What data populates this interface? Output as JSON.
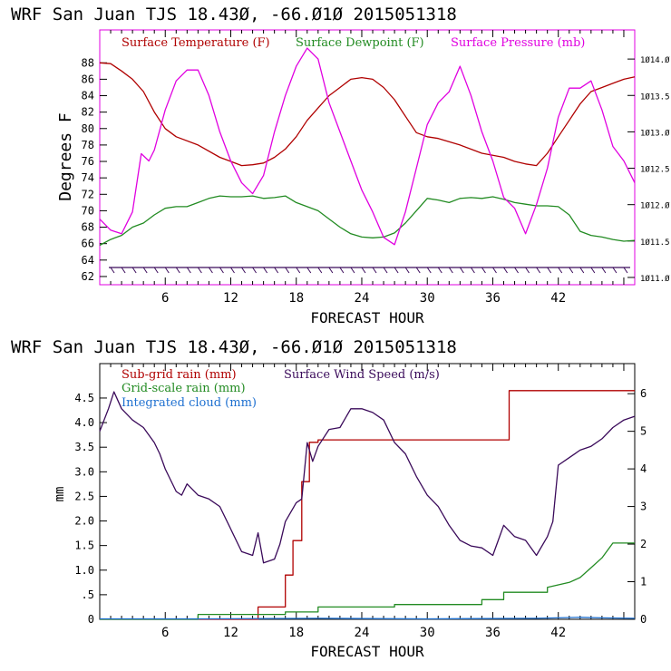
{
  "charts": [
    {
      "title": "WRF  San Juan TJS  18.43Ø, -66.Ø1Ø  2015051318",
      "xlabel": "FORECAST HOUR",
      "ylabel": "Degrees F",
      "legend": [
        {
          "label": "Surface Temperature (F)",
          "color": "#b00000"
        },
        {
          "label": "Surface Dewpoint (F)",
          "color": "#228b22"
        },
        {
          "label": "Surface Pressure (mb)",
          "color": "#e000e0"
        }
      ],
      "xticks": [
        "6",
        "12",
        "18",
        "24",
        "30",
        "36",
        "42"
      ],
      "yticks_left": [
        "62",
        "64",
        "66",
        "68",
        "70",
        "72",
        "74",
        "76",
        "78",
        "80",
        "82",
        "84",
        "86",
        "88"
      ],
      "yticks_right": [
        "1Ø11.Ø",
        "1Ø11.5",
        "1Ø12.Ø",
        "1Ø12.5",
        "1Ø13.Ø",
        "1Ø13.5",
        "1Ø14.Ø"
      ]
    },
    {
      "title": "WRF  San Juan TJS  18.43Ø, -66.Ø1Ø  2015051318",
      "xlabel": "FORECAST HOUR",
      "ylabel": "mm",
      "legend": [
        {
          "label": "Sub-grid rain (mm)",
          "color": "#b00000"
        },
        {
          "label": "Surface Wind Speed (m/s)",
          "color": "#3a0a5a"
        },
        {
          "label": "Grid-scale rain (mm)",
          "color": "#228b22"
        },
        {
          "label": "Integrated cloud (mm)",
          "color": "#1e70d0"
        }
      ],
      "xticks": [
        "6",
        "12",
        "18",
        "24",
        "30",
        "36",
        "42"
      ],
      "yticks_left": [
        "0",
        ".5",
        "1.0",
        "1.5",
        "2.0",
        "2.5",
        "3.0",
        "3.5",
        "4.0",
        "4.5"
      ],
      "yticks_right": [
        "0",
        "1",
        "2",
        "3",
        "4",
        "5",
        "6"
      ]
    }
  ],
  "chart_data": [
    {
      "type": "line",
      "x_range": [
        0,
        49
      ],
      "ylim": [
        61,
        92
      ],
      "y2lim": [
        1010.9,
        1014.4
      ],
      "series": [
        {
          "name": "Surface Temperature (F)",
          "axis": "left",
          "color": "#b00000",
          "points": [
            [
              0,
              88
            ],
            [
              1,
              87.9
            ],
            [
              2,
              87
            ],
            [
              3,
              86
            ],
            [
              4,
              84.5
            ],
            [
              5,
              82
            ],
            [
              6,
              80
            ],
            [
              7,
              79
            ],
            [
              9,
              78
            ],
            [
              11,
              76.5
            ],
            [
              12,
              76
            ],
            [
              13,
              75.5
            ],
            [
              14,
              75.6
            ],
            [
              15,
              75.8
            ],
            [
              16,
              76.5
            ],
            [
              17,
              77.5
            ],
            [
              18,
              79
            ],
            [
              19,
              81
            ],
            [
              20,
              82.5
            ],
            [
              21,
              84
            ],
            [
              22,
              85
            ],
            [
              23,
              86
            ],
            [
              24,
              86.2
            ],
            [
              25,
              86
            ],
            [
              26,
              85
            ],
            [
              27,
              83.5
            ],
            [
              28,
              81.5
            ],
            [
              29,
              79.5
            ],
            [
              30,
              79
            ],
            [
              31,
              78.8
            ],
            [
              33,
              78
            ],
            [
              35,
              77
            ],
            [
              37,
              76.5
            ],
            [
              38,
              76
            ],
            [
              39,
              75.7
            ],
            [
              40,
              75.5
            ],
            [
              41,
              77
            ],
            [
              42,
              79
            ],
            [
              43,
              81
            ],
            [
              44,
              83
            ],
            [
              45,
              84.5
            ],
            [
              46,
              85
            ],
            [
              47,
              85.5
            ],
            [
              48,
              86
            ],
            [
              49,
              86.3
            ]
          ]
        },
        {
          "name": "Surface Dewpoint (F)",
          "axis": "left",
          "color": "#228b22",
          "points": [
            [
              0,
              65.8
            ],
            [
              1,
              66.5
            ],
            [
              2,
              67
            ],
            [
              3,
              68
            ],
            [
              4,
              68.5
            ],
            [
              5,
              69.5
            ],
            [
              6,
              70.3
            ],
            [
              7,
              70.5
            ],
            [
              8,
              70.5
            ],
            [
              9,
              71
            ],
            [
              10,
              71.5
            ],
            [
              11,
              71.8
            ],
            [
              12,
              71.7
            ],
            [
              13,
              71.7
            ],
            [
              14,
              71.8
            ],
            [
              15,
              71.5
            ],
            [
              16,
              71.6
            ],
            [
              17,
              71.8
            ],
            [
              18,
              71
            ],
            [
              19,
              70.5
            ],
            [
              20,
              70
            ],
            [
              21,
              69
            ],
            [
              22,
              68
            ],
            [
              23,
              67.2
            ],
            [
              24,
              66.8
            ],
            [
              25,
              66.7
            ],
            [
              26,
              66.8
            ],
            [
              27,
              67.3
            ],
            [
              28,
              68.5
            ],
            [
              29,
              70
            ],
            [
              30,
              71.5
            ],
            [
              31,
              71.3
            ],
            [
              32,
              71
            ],
            [
              33,
              71.5
            ],
            [
              34,
              71.6
            ],
            [
              35,
              71.5
            ],
            [
              36,
              71.7
            ],
            [
              37,
              71.4
            ],
            [
              38,
              71
            ],
            [
              39,
              70.8
            ],
            [
              40,
              70.6
            ],
            [
              41,
              70.6
            ],
            [
              42,
              70.5
            ],
            [
              43,
              69.5
            ],
            [
              44,
              67.5
            ],
            [
              45,
              67
            ],
            [
              46,
              66.8
            ],
            [
              47,
              66.5
            ],
            [
              48,
              66.3
            ],
            [
              49,
              66.4
            ]
          ]
        },
        {
          "name": "Surface Pressure (mb)",
          "axis": "right",
          "color": "#e000e0",
          "points": [
            [
              0,
              1011.8
            ],
            [
              1,
              1011.65
            ],
            [
              2,
              1011.6
            ],
            [
              3,
              1011.9
            ],
            [
              3.8,
              1012.7
            ],
            [
              4.5,
              1012.6
            ],
            [
              5,
              1012.75
            ],
            [
              6,
              1013.3
            ],
            [
              7,
              1013.7
            ],
            [
              8,
              1013.85
            ],
            [
              9,
              1013.85
            ],
            [
              10,
              1013.5
            ],
            [
              11,
              1013.0
            ],
            [
              12,
              1012.6
            ],
            [
              13,
              1012.3
            ],
            [
              14,
              1012.15
            ],
            [
              15,
              1012.4
            ],
            [
              16,
              1013.0
            ],
            [
              17,
              1013.5
            ],
            [
              18,
              1013.9
            ],
            [
              19,
              1014.15
            ],
            [
              20,
              1014.0
            ],
            [
              21,
              1013.4
            ],
            [
              22,
              1013.0
            ],
            [
              23,
              1012.6
            ],
            [
              24,
              1012.2
            ],
            [
              25,
              1011.9
            ],
            [
              26,
              1011.55
            ],
            [
              27,
              1011.45
            ],
            [
              28,
              1011.9
            ],
            [
              29,
              1012.5
            ],
            [
              30,
              1013.1
            ],
            [
              31,
              1013.4
            ],
            [
              32,
              1013.55
            ],
            [
              33,
              1013.9
            ],
            [
              34,
              1013.5
            ],
            [
              35,
              1013.0
            ],
            [
              36,
              1012.6
            ],
            [
              37,
              1012.1
            ],
            [
              38,
              1011.95
            ],
            [
              39,
              1011.6
            ],
            [
              40,
              1012.0
            ],
            [
              41,
              1012.5
            ],
            [
              42,
              1013.2
            ],
            [
              43,
              1013.6
            ],
            [
              44,
              1013.6
            ],
            [
              45,
              1013.7
            ],
            [
              46,
              1013.3
            ],
            [
              47,
              1012.8
            ],
            [
              48,
              1012.6
            ],
            [
              49,
              1012.3
            ]
          ]
        }
      ]
    },
    {
      "type": "line",
      "x_range": [
        0,
        49
      ],
      "ylim": [
        0,
        5.2
      ],
      "y2lim": [
        0,
        6.8
      ],
      "series": [
        {
          "name": "Sub-grid rain (mm)",
          "axis": "left",
          "color": "#b00000",
          "step": true,
          "points": [
            [
              0,
              0
            ],
            [
              14.5,
              0
            ],
            [
              14.5,
              0.25
            ],
            [
              17,
              0.25
            ],
            [
              17,
              0.9
            ],
            [
              17.7,
              0.9
            ],
            [
              17.7,
              1.6
            ],
            [
              18.5,
              1.6
            ],
            [
              18.5,
              2.8
            ],
            [
              19.2,
              2.8
            ],
            [
              19.2,
              3.6
            ],
            [
              20,
              3.6
            ],
            [
              20,
              3.65
            ],
            [
              37.5,
              3.65
            ],
            [
              37.5,
              4.65
            ],
            [
              49,
              4.65
            ]
          ]
        },
        {
          "name": "Surface Wind Speed (m/s)",
          "axis": "right",
          "color": "#3a0a5a",
          "points": [
            [
              0,
              5
            ],
            [
              0.8,
              5.6
            ],
            [
              1.3,
              6.05
            ],
            [
              2,
              5.6
            ],
            [
              3,
              5.3
            ],
            [
              4,
              5.1
            ],
            [
              5,
              4.7
            ],
            [
              5.5,
              4.4
            ],
            [
              6,
              4
            ],
            [
              7,
              3.4
            ],
            [
              7.5,
              3.3
            ],
            [
              8,
              3.6
            ],
            [
              9,
              3.3
            ],
            [
              10,
              3.2
            ],
            [
              11,
              3.0
            ],
            [
              12,
              2.4
            ],
            [
              13,
              1.8
            ],
            [
              14,
              1.7
            ],
            [
              14.5,
              2.3
            ],
            [
              15,
              1.5
            ],
            [
              16,
              1.6
            ],
            [
              16.5,
              2.0
            ],
            [
              17,
              2.6
            ],
            [
              18,
              3.1
            ],
            [
              18.5,
              3.2
            ],
            [
              19,
              4.7
            ],
            [
              19.5,
              4.2
            ],
            [
              20,
              4.6
            ],
            [
              21,
              5.05
            ],
            [
              22,
              5.1
            ],
            [
              23,
              5.6
            ],
            [
              24,
              5.6
            ],
            [
              25,
              5.5
            ],
            [
              26,
              5.3
            ],
            [
              27,
              4.7
            ],
            [
              28,
              4.4
            ],
            [
              29,
              3.8
            ],
            [
              30,
              3.3
            ],
            [
              31,
              3.0
            ],
            [
              32,
              2.5
            ],
            [
              33,
              2.1
            ],
            [
              34,
              1.95
            ],
            [
              35,
              1.9
            ],
            [
              36,
              1.7
            ],
            [
              36.5,
              2.1
            ],
            [
              37,
              2.5
            ],
            [
              38,
              2.2
            ],
            [
              39,
              2.1
            ],
            [
              40,
              1.7
            ],
            [
              41,
              2.2
            ],
            [
              41.5,
              2.6
            ],
            [
              42,
              4.1
            ],
            [
              43,
              4.3
            ],
            [
              44,
              4.5
            ],
            [
              45,
              4.6
            ],
            [
              46,
              4.8
            ],
            [
              47,
              5.1
            ],
            [
              48,
              5.3
            ],
            [
              49,
              5.4
            ]
          ]
        },
        {
          "name": "Grid-scale rain (mm)",
          "axis": "left",
          "color": "#228b22",
          "step": true,
          "points": [
            [
              0,
              0
            ],
            [
              9,
              0
            ],
            [
              9,
              0.1
            ],
            [
              17,
              0.1
            ],
            [
              17,
              0.15
            ],
            [
              20,
              0.15
            ],
            [
              20,
              0.25
            ],
            [
              27,
              0.25
            ],
            [
              27,
              0.3
            ],
            [
              35,
              0.3
            ],
            [
              35,
              0.4
            ],
            [
              37,
              0.4
            ],
            [
              37,
              0.55
            ],
            [
              41,
              0.55
            ],
            [
              41,
              0.65
            ],
            [
              43,
              0.75
            ],
            [
              44,
              0.85
            ],
            [
              45,
              1.05
            ],
            [
              46,
              1.25
            ],
            [
              47,
              1.55
            ],
            [
              49,
              1.55
            ]
          ]
        },
        {
          "name": "Integrated cloud (mm)",
          "axis": "left",
          "color": "#1e70d0",
          "points": [
            [
              0,
              0.01
            ],
            [
              10,
              0.01
            ],
            [
              20,
              0.02
            ],
            [
              30,
              0.01
            ],
            [
              40,
              0.02
            ],
            [
              44,
              0.04
            ],
            [
              46,
              0.03
            ],
            [
              49,
              0.02
            ]
          ]
        }
      ]
    }
  ]
}
